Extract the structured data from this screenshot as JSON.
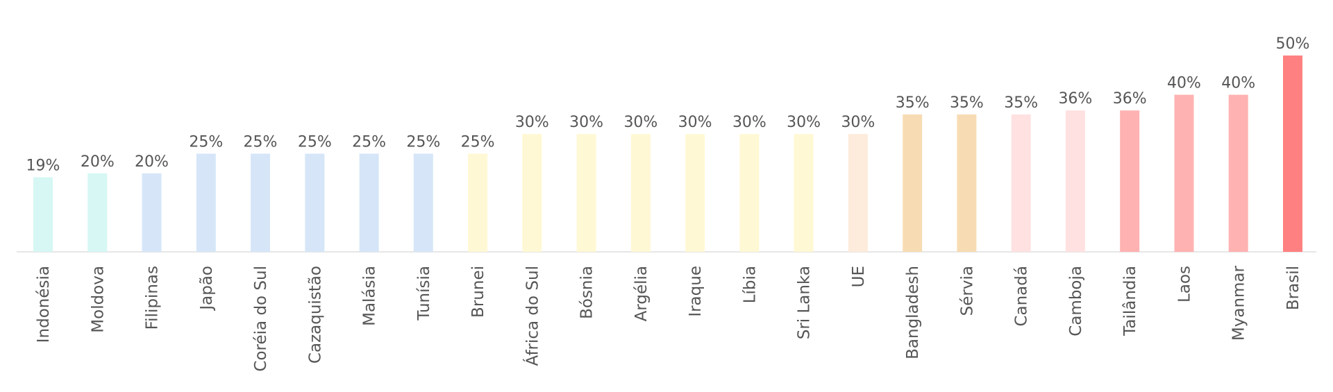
{
  "chart_data": {
    "type": "bar",
    "categories": [
      "Indonésia",
      "Moldova",
      "Filipinas",
      "Japão",
      "Coréia do Sul",
      "Cazaquistão",
      "Malásia",
      "Tunísia",
      "Brunei",
      "África do Sul",
      "Bósnia",
      "Argélia",
      "Iraque",
      "Líbia",
      "Sri Lanka",
      "UE",
      "Bangladesh",
      "Sérvia",
      "Canadá",
      "Camboja",
      "Tailândia",
      "Laos",
      "Myanmar",
      "Brasil"
    ],
    "values": [
      19,
      20,
      20,
      25,
      25,
      25,
      25,
      25,
      25,
      30,
      30,
      30,
      30,
      30,
      30,
      30,
      35,
      35,
      35,
      36,
      36,
      40,
      40,
      50
    ],
    "value_labels": [
      "19%",
      "20%",
      "20%",
      "25%",
      "25%",
      "25%",
      "25%",
      "25%",
      "25%",
      "30%",
      "30%",
      "30%",
      "30%",
      "30%",
      "30%",
      "30%",
      "35%",
      "35%",
      "35%",
      "36%",
      "36%",
      "40%",
      "40%",
      "50%"
    ],
    "colors": [
      "#d6f7f4",
      "#d6f7f4",
      "#d6e6f8",
      "#d6e6f8",
      "#d6e6f8",
      "#d6e6f8",
      "#d6e6f8",
      "#d6e6f8",
      "#fff8d4",
      "#fff8d4",
      "#fff8d4",
      "#fff8d4",
      "#fff8d4",
      "#fff8d4",
      "#fff8d4",
      "#fdebdb",
      "#f7dcb3",
      "#f7dcb3",
      "#ffe1e1",
      "#ffe1e1",
      "#ffb2b2",
      "#ffb2b2",
      "#ffb2b2",
      "#ff8080"
    ],
    "ylim": [
      0,
      50
    ],
    "grid": false,
    "legend": "none"
  }
}
